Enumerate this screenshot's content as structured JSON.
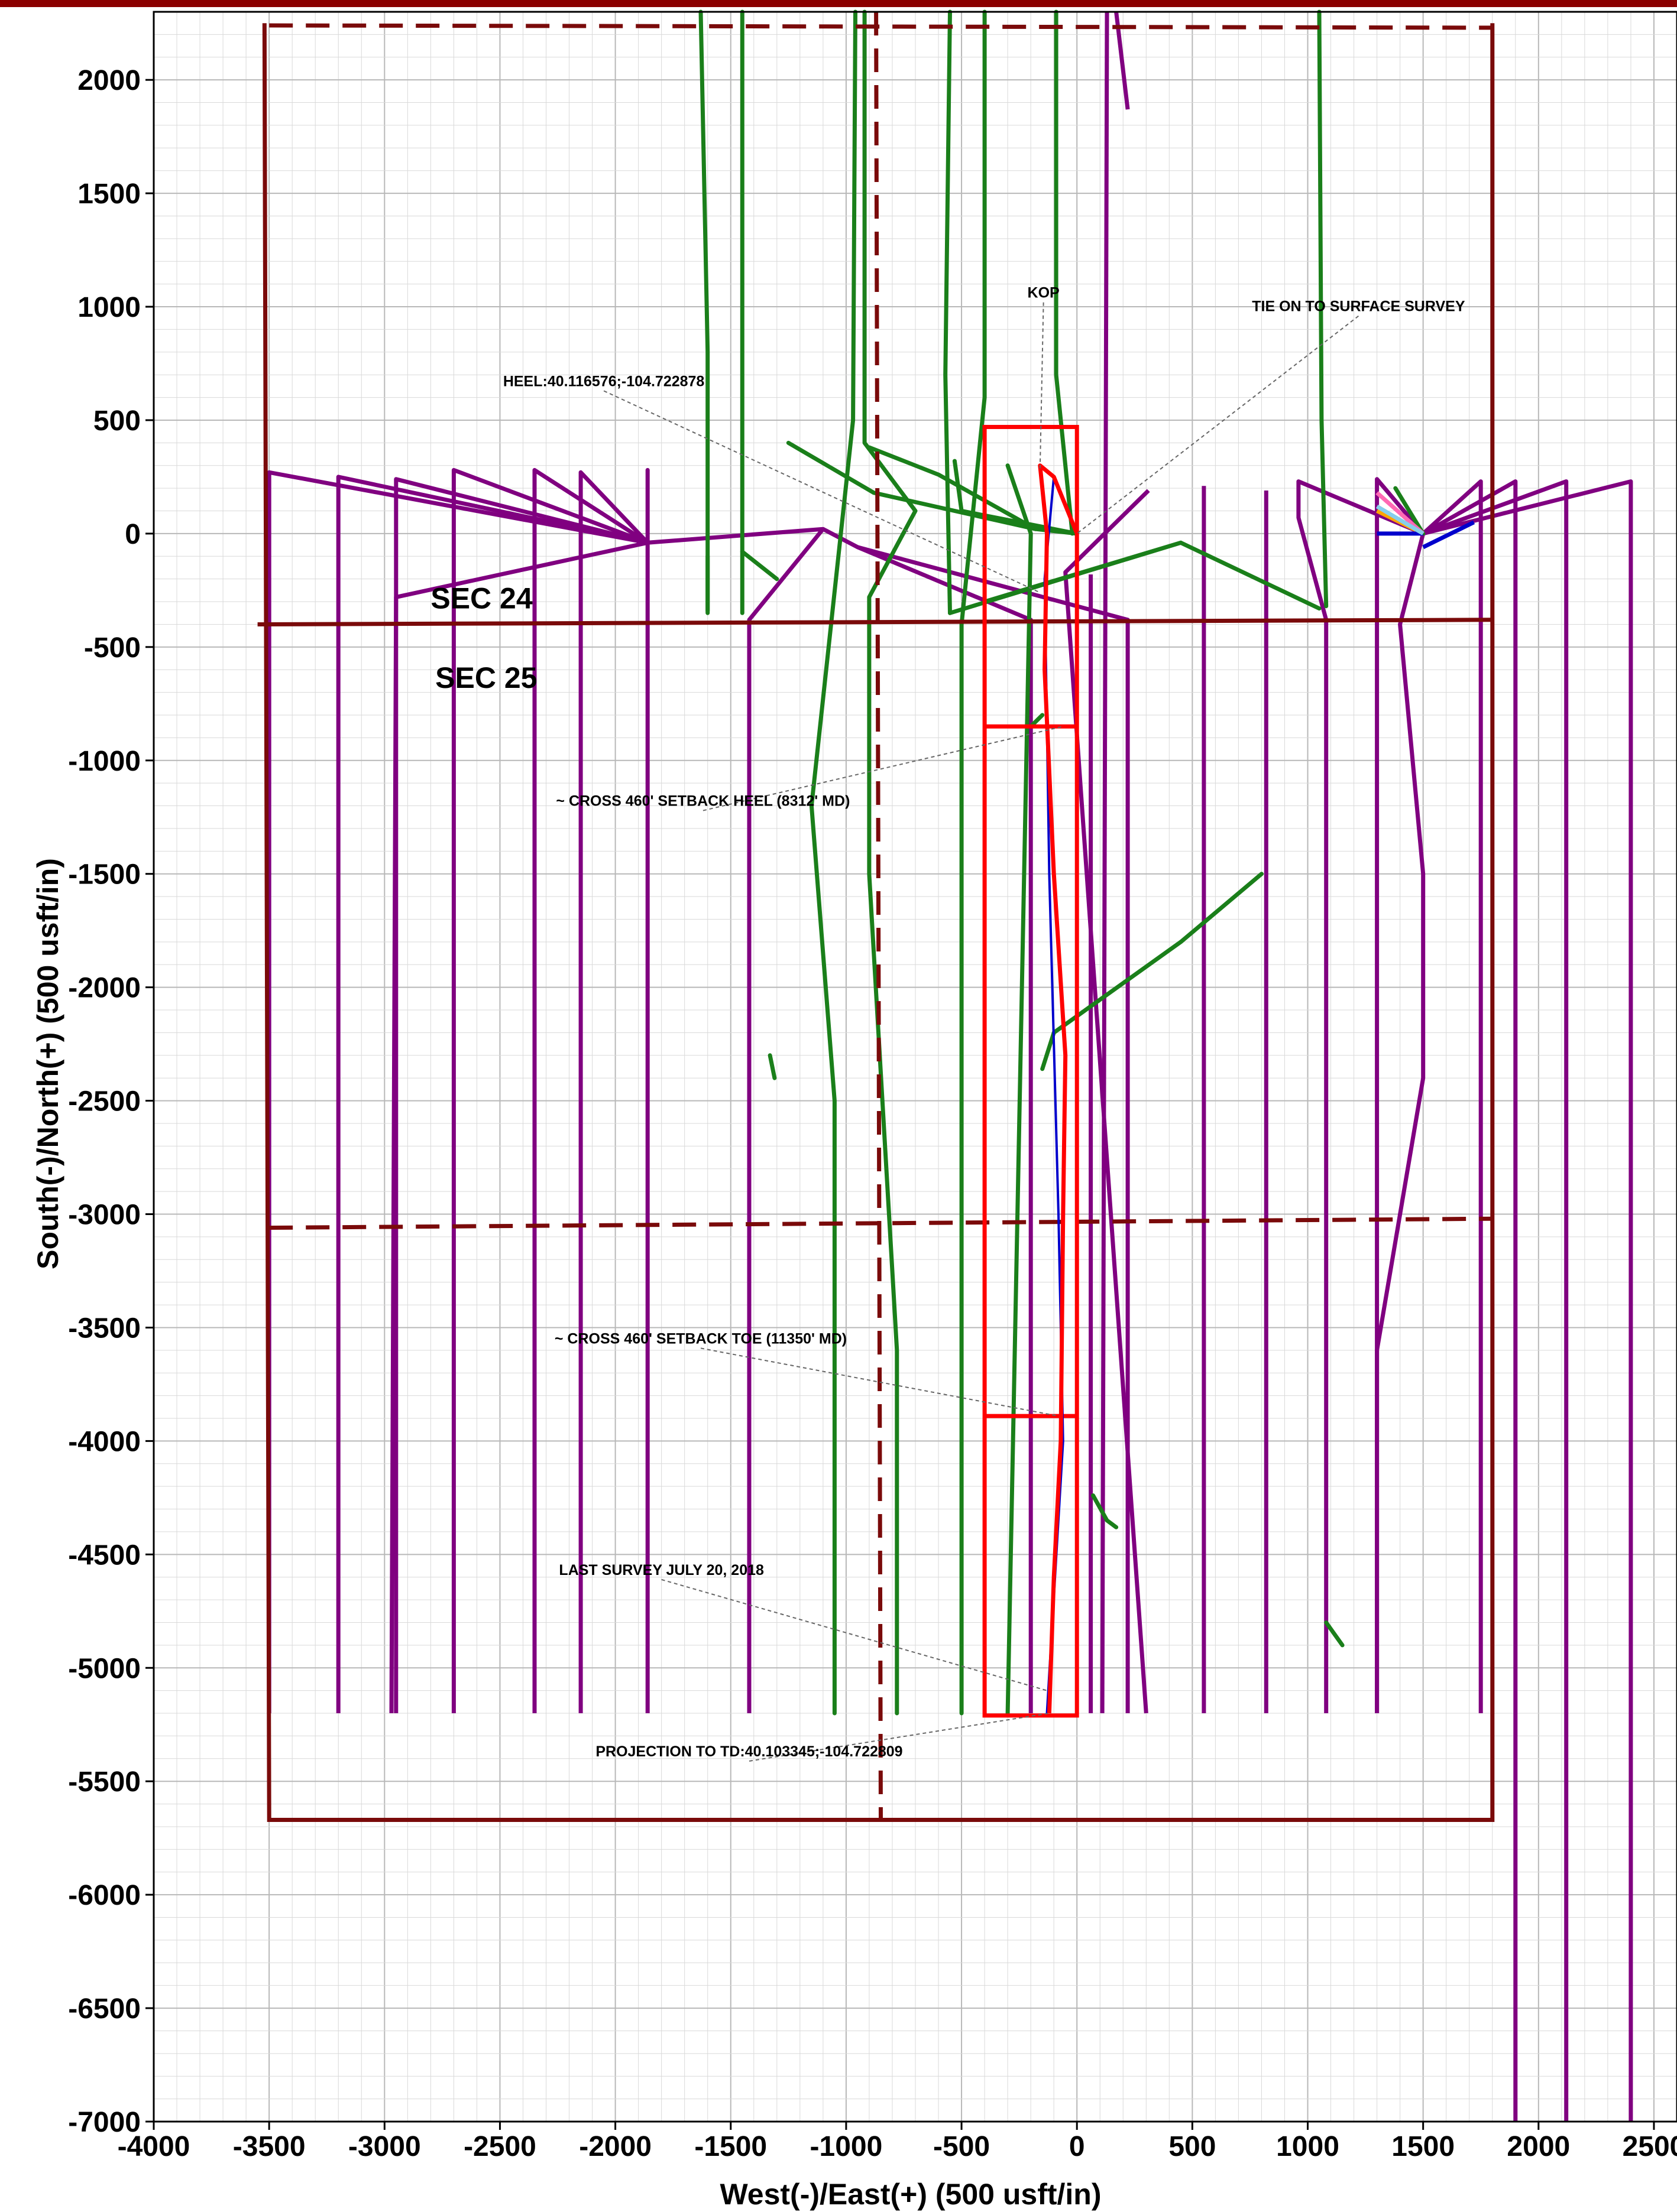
{
  "chart_data": {
    "type": "line",
    "xlabel": "West(-)/East(+) (500 usft/in)",
    "ylabel": "South(-)/North(+) (500 usft/in)",
    "xlim": [
      -4000,
      2600
    ],
    "ylim": [
      -7000,
      2300
    ],
    "grid": true,
    "x_ticks": [
      -4000,
      -3500,
      -3000,
      -2500,
      -2000,
      -1500,
      -1000,
      -500,
      0,
      500,
      1000,
      1500,
      2000,
      2500
    ],
    "y_ticks": [
      2000,
      1500,
      1000,
      500,
      0,
      -500,
      -1000,
      -1500,
      -2000,
      -2500,
      -3000,
      -3500,
      -4000,
      -4500,
      -5000,
      -5500,
      -6000,
      -6500,
      -7000
    ],
    "x_tick_labels": [
      "-4000",
      "-3500",
      "-3000",
      "-2500",
      "-2000",
      "-1500",
      "-1000",
      "-500",
      "0",
      "500",
      "1000",
      "1500",
      "2000",
      "2500"
    ],
    "y_tick_labels": [
      "2000",
      "1500",
      "1000",
      "500",
      "0",
      "-500",
      "-1000",
      "-1500",
      "-2000",
      "-2500",
      "-3000",
      "-3500",
      "-4000",
      "-4500",
      "-5000",
      "-5500",
      "-6000",
      "-6500",
      "-7000"
    ],
    "colors": {
      "grid_minor": "#d9d9d9",
      "grid_major": "#b8b8b8",
      "section": "#7a0a0a",
      "offset_purple": "#800080",
      "offset_green": "#1a7f1a",
      "target": "#ff0000",
      "plan": "#0000cc"
    },
    "section_lines": [
      {
        "points": [
          [
            -3520,
            2250
          ],
          [
            -3500,
            -5670
          ],
          [
            1800,
            -5670
          ],
          [
            1800,
            2250
          ]
        ]
      },
      {
        "points": [
          [
            -3550,
            -400
          ],
          [
            1800,
            -380
          ]
        ]
      }
    ],
    "dashed_lines": [
      {
        "points": [
          [
            -3500,
            2240
          ],
          [
            1800,
            2230
          ]
        ]
      },
      {
        "points": [
          [
            -3500,
            -3060
          ],
          [
            1800,
            -3020
          ]
        ]
      },
      {
        "points": [
          [
            -870,
            2300
          ],
          [
            -850,
            -5670
          ]
        ]
      }
    ],
    "section_labels": [
      "SEC 24",
      "SEC 25"
    ],
    "target_box": {
      "x": [
        -400,
        0
      ],
      "y": [
        -5210,
        470
      ],
      "dividers": [
        -850,
        -3890
      ]
    },
    "purple_wells": [
      [
        [
          -1860,
          -40
        ],
        [
          -3500,
          270
        ],
        [
          -3500,
          -5200
        ]
      ],
      [
        [
          -1860,
          -40
        ],
        [
          -3200,
          250
        ],
        [
          -3200,
          -5200
        ]
      ],
      [
        [
          -1860,
          -40
        ],
        [
          -2950,
          240
        ],
        [
          -2950,
          -5200
        ]
      ],
      [
        [
          -1860,
          -40
        ],
        [
          -2700,
          280
        ],
        [
          -2700,
          -5200
        ]
      ],
      [
        [
          -1860,
          -40
        ],
        [
          -2350,
          280
        ],
        [
          -2350,
          -5200
        ]
      ],
      [
        [
          -1860,
          -40
        ],
        [
          -2150,
          270
        ],
        [
          -2150,
          -5200
        ]
      ],
      [
        [
          -1860,
          -40
        ],
        [
          -1860,
          280
        ],
        [
          -1860,
          -5200
        ]
      ],
      [
        [
          -1860,
          -40
        ],
        [
          -1100,
          20
        ],
        [
          -1420,
          -380
        ],
        [
          -1420,
          -5200
        ]
      ],
      [
        [
          -1860,
          -40
        ],
        [
          -2950,
          -280
        ],
        [
          -2970,
          -5200
        ]
      ],
      [
        [
          -1100,
          20
        ],
        [
          -950,
          -60
        ],
        [
          -200,
          -380
        ],
        [
          -200,
          -5200
        ]
      ],
      [
        [
          -950,
          -60
        ],
        [
          220,
          -380
        ],
        [
          220,
          -5200
        ]
      ],
      [
        [
          60,
          -180
        ],
        [
          60,
          -5200
        ]
      ],
      [
        [
          310,
          190
        ],
        [
          -50,
          -170
        ],
        [
          300,
          -5200
        ]
      ],
      [
        [
          550,
          210
        ],
        [
          550,
          -5200
        ]
      ],
      [
        [
          820,
          190
        ],
        [
          820,
          -5200
        ]
      ],
      [
        [
          1500,
          0
        ],
        [
          1300,
          240
        ],
        [
          1300,
          -5200
        ]
      ],
      [
        [
          1500,
          0
        ],
        [
          960,
          230
        ],
        [
          960,
          70
        ],
        [
          1080,
          -380
        ],
        [
          1080,
          -5200
        ]
      ],
      [
        [
          1500,
          0
        ],
        [
          1750,
          230
        ],
        [
          1750,
          -5200
        ]
      ],
      [
        [
          1500,
          0
        ],
        [
          1900,
          230
        ],
        [
          1900,
          -7000
        ]
      ],
      [
        [
          1500,
          0
        ],
        [
          2120,
          230
        ],
        [
          2120,
          -7000
        ]
      ],
      [
        [
          1500,
          0
        ],
        [
          2400,
          230
        ],
        [
          2400,
          -7000
        ]
      ],
      [
        [
          1500,
          0
        ],
        [
          1400,
          -400
        ],
        [
          1500,
          -1500
        ],
        [
          1500,
          -2400
        ],
        [
          1300,
          -3600
        ],
        [
          1300,
          -5200
        ]
      ],
      [
        [
          170,
          2300
        ],
        [
          220,
          1870
        ]
      ],
      [
        [
          130,
          2300
        ],
        [
          110,
          -5200
        ]
      ]
    ],
    "green_wells": [
      [
        [
          -1630,
          2300
        ],
        [
          -1600,
          800
        ],
        [
          -1600,
          -350
        ]
      ],
      [
        [
          -1450,
          2300
        ],
        [
          -1450,
          700
        ],
        [
          -1450,
          -350
        ]
      ],
      [
        [
          -960,
          2300
        ],
        [
          -970,
          500
        ],
        [
          -1150,
          -1200
        ],
        [
          -1050,
          -2500
        ],
        [
          -1050,
          -5200
        ]
      ],
      [
        [
          -920,
          2300
        ],
        [
          -920,
          400
        ],
        [
          -700,
          100
        ],
        [
          -900,
          -280
        ],
        [
          -900,
          -1500
        ],
        [
          -780,
          -3600
        ],
        [
          -780,
          -5200
        ]
      ],
      [
        [
          -550,
          2300
        ],
        [
          -570,
          700
        ],
        [
          -550,
          -350
        ]
      ],
      [
        [
          -400,
          2300
        ],
        [
          -400,
          600
        ],
        [
          -500,
          -400
        ],
        [
          -500,
          -5200
        ]
      ],
      [
        [
          -90,
          2300
        ],
        [
          -90,
          700
        ],
        [
          -20,
          0
        ]
      ],
      [
        [
          1050,
          2300
        ],
        [
          1060,
          500
        ],
        [
          1080,
          -320
        ]
      ],
      [
        [
          -1250,
          400
        ],
        [
          -880,
          180
        ],
        [
          -180,
          20
        ],
        [
          0,
          0
        ]
      ],
      [
        [
          -900,
          380
        ],
        [
          -600,
          260
        ],
        [
          -180,
          20
        ]
      ],
      [
        [
          -530,
          320
        ],
        [
          -500,
          100
        ],
        [
          0,
          0
        ]
      ],
      [
        [
          -1600,
          -100
        ],
        [
          -1600,
          -340
        ]
      ],
      [
        [
          -1450,
          -80
        ],
        [
          -1300,
          -200
        ]
      ],
      [
        [
          -550,
          -350
        ],
        [
          450,
          -40
        ]
      ],
      [
        [
          -400,
          -300
        ],
        [
          450,
          -40
        ],
        [
          1050,
          -330
        ]
      ],
      [
        [
          -300,
          300
        ],
        [
          -200,
          0
        ],
        [
          -300,
          -5200
        ]
      ],
      [
        [
          -150,
          -2360
        ],
        [
          -100,
          -2200
        ],
        [
          450,
          -1800
        ],
        [
          800,
          -1500
        ]
      ],
      [
        [
          70,
          -4240
        ],
        [
          130,
          -4350
        ],
        [
          170,
          -4380
        ]
      ],
      [
        [
          1080,
          -4800
        ],
        [
          1150,
          -4900
        ]
      ],
      [
        [
          -1330,
          -2300
        ],
        [
          -1310,
          -2400
        ]
      ],
      [
        [
          -200,
          -850
        ],
        [
          -150,
          -800
        ]
      ],
      [
        [
          1380,
          200
        ],
        [
          1500,
          0
        ]
      ]
    ],
    "red_path": [
      [
        0,
        0
      ],
      [
        -100,
        250
      ],
      [
        -160,
        300
      ],
      [
        -130,
        0
      ],
      [
        -140,
        -600
      ],
      [
        -100,
        -1500
      ],
      [
        -50,
        -2300
      ],
      [
        -60,
        -3000
      ],
      [
        -70,
        -4000
      ],
      [
        -100,
        -4600
      ],
      [
        -120,
        -5200
      ]
    ],
    "blue_path": [
      [
        -100,
        250
      ],
      [
        -140,
        -200
      ],
      [
        -120,
        -1500
      ],
      [
        -80,
        -3000
      ],
      [
        -60,
        -4000
      ],
      [
        -130,
        -5200
      ]
    ],
    "fan_colors": [
      "#ff69b4",
      "#ffa500",
      "#0000cc",
      "#87ceeb"
    ],
    "annotations": [
      {
        "text": "KOP",
        "x": -145,
        "y": 1040,
        "anchor": "middle",
        "target": [
          -160,
          280
        ]
      },
      {
        "text": "TIE ON TO SURFACE SURVEY",
        "x": 1220,
        "y": 980,
        "anchor": "middle",
        "target": [
          0,
          0
        ]
      },
      {
        "text": "HEEL:40.116576;-104.722878",
        "x": -2050,
        "y": 650,
        "anchor": "middle",
        "target": [
          -160,
          -260
        ]
      },
      {
        "text": "~ CROSS 460' SETBACK HEEL (8312' MD)",
        "x": -1620,
        "y": -1200,
        "anchor": "middle",
        "target": [
          -60,
          -850
        ]
      },
      {
        "text": "~ CROSS 460' SETBACK TOE (11350' MD)",
        "x": -1630,
        "y": -3570,
        "anchor": "middle",
        "target": [
          -80,
          -3890
        ]
      },
      {
        "text": "LAST SURVEY JULY 20, 2018",
        "x": -1800,
        "y": -4590,
        "anchor": "middle",
        "target": [
          -130,
          -5100
        ]
      },
      {
        "text": "PROJECTION TO TD:40.103345;-104.722809",
        "x": -1420,
        "y": -5390,
        "anchor": "middle",
        "target": [
          -120,
          -5200
        ]
      }
    ]
  }
}
